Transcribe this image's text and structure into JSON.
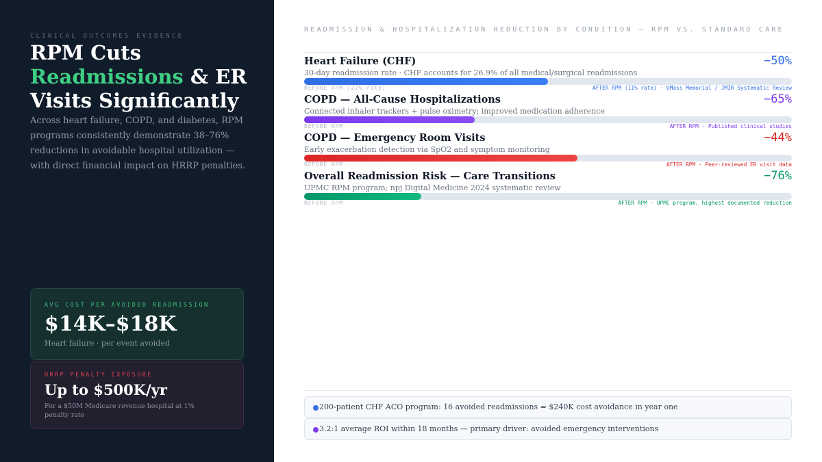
{
  "left": {
    "eyebrow": "CLINICAL OUTCOMES EVIDENCE",
    "headline": {
      "line1": "RPM Cuts",
      "accent": "Readmissions",
      "line2_rest": " & ER",
      "line3": "Visits Significantly"
    },
    "intro": "Across heart failure, COPD, and diabetes, RPM programs consistently demonstrate 38–76% reductions in avoidable hospital utilization — with direct financial impact on HRRP penalties.",
    "cards": [
      {
        "label": "AVG COST PER AVOIDED READMISSION",
        "value": "$14K–$18K",
        "sub": "Heart failure · per event avoided"
      },
      {
        "label": "HRRP PENALTY EXPOSURE",
        "value": "Up to $500K/yr",
        "sub": "For a $50M Medicare revenue hospital at 1% penalty rate"
      }
    ]
  },
  "right": {
    "title": "READMISSION & HOSPITALIZATION REDUCTION BY CONDITION — RPM VS. STANDARD CARE",
    "rows": [
      {
        "name": "Heart Failure (CHF)",
        "percent": "−50%",
        "description": "30-day readmission rate · CHF accounts for 26.9% of all medical/surgical readmissions",
        "before": "BEFORE RPM (22% rate)",
        "after": "AFTER RPM (11% rate) · UMass Memorial / JMIR Systematic Review",
        "fill_fraction": 0.5,
        "color": "#3b7ff5",
        "color2": "#2f6fe3"
      },
      {
        "name": "COPD — All-Cause Hospitalizations",
        "percent": "−65%",
        "description": "Connected inhaler trackers + pulse oximetry; improved medication adherence",
        "before": "BEFORE RPM",
        "after": "AFTER RPM · Published clinical studies",
        "fill_fraction": 0.35,
        "color": "#8b4cf2",
        "color2": "#7c3aed"
      },
      {
        "name": "COPD — Emergency Room Visits",
        "percent": "−44%",
        "description": "Early exacerbation detection via SpO2 and symptom monitoring",
        "before": "BEFORE RPM",
        "after": "AFTER RPM · Peer-reviewed ER visit data",
        "fill_fraction": 0.56,
        "color": "#ef4444",
        "color2": "#dc2626"
      },
      {
        "name": "Overall Readmission Risk — Care Transitions",
        "percent": "−76%",
        "description": "UPMC RPM program; npj Digital Medicine 2024 systematic review",
        "before": "BEFORE RPM",
        "after": "AFTER RPM · UPMC program, highest documented reduction",
        "fill_fraction": 0.24,
        "color": "#10b981",
        "color2": "#059669"
      }
    ],
    "notes": [
      {
        "text": "200-patient CHF ACO program: 16 avoided readmissions = $240K cost avoidance in year one",
        "dot_color": "#3b6fe3"
      },
      {
        "text": "3.2:1 average ROI within 18 months — primary driver: avoided emergency interventions",
        "dot_color": "#7c3aed"
      }
    ]
  }
}
